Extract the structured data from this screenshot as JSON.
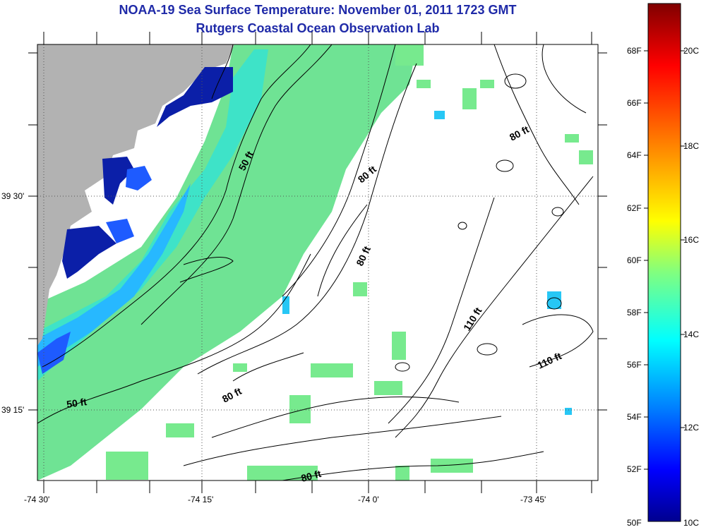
{
  "title": "NOAA-19 Sea Surface Temperature:  November 01, 2011 1723 GMT",
  "subtitle": "Rutgers Coastal Ocean Observation Lab",
  "map": {
    "x_ticks": [
      "-74 30'",
      "-74 15'",
      "-74 0'",
      "-73 45'"
    ],
    "y_ticks": [
      "39 30'",
      "39 15'"
    ],
    "contour_labels": [
      "50 ft",
      "50 ft",
      "80 ft",
      "80 ft",
      "80 ft",
      "80 ft",
      "80 ft",
      "110 ft",
      "110 ft"
    ],
    "land_color": "#b2b2b2",
    "sst_colors": [
      "#00006e",
      "#0033ee",
      "#1f7fff",
      "#27c7f5",
      "#52e6b8",
      "#77ea8e"
    ]
  },
  "colorbar": {
    "fahrenheit": [
      "68F",
      "66F",
      "64F",
      "62F",
      "60F",
      "58F",
      "56F",
      "54F",
      "52F",
      "50F"
    ],
    "celsius": [
      "20C",
      "18C",
      "16C",
      "14C",
      "12C",
      "10C"
    ],
    "colors": [
      "#800000",
      "#ff0000",
      "#ff8000",
      "#ffff00",
      "#80ff80",
      "#00ffff",
      "#0080ff",
      "#0000ff",
      "#00008f"
    ]
  }
}
